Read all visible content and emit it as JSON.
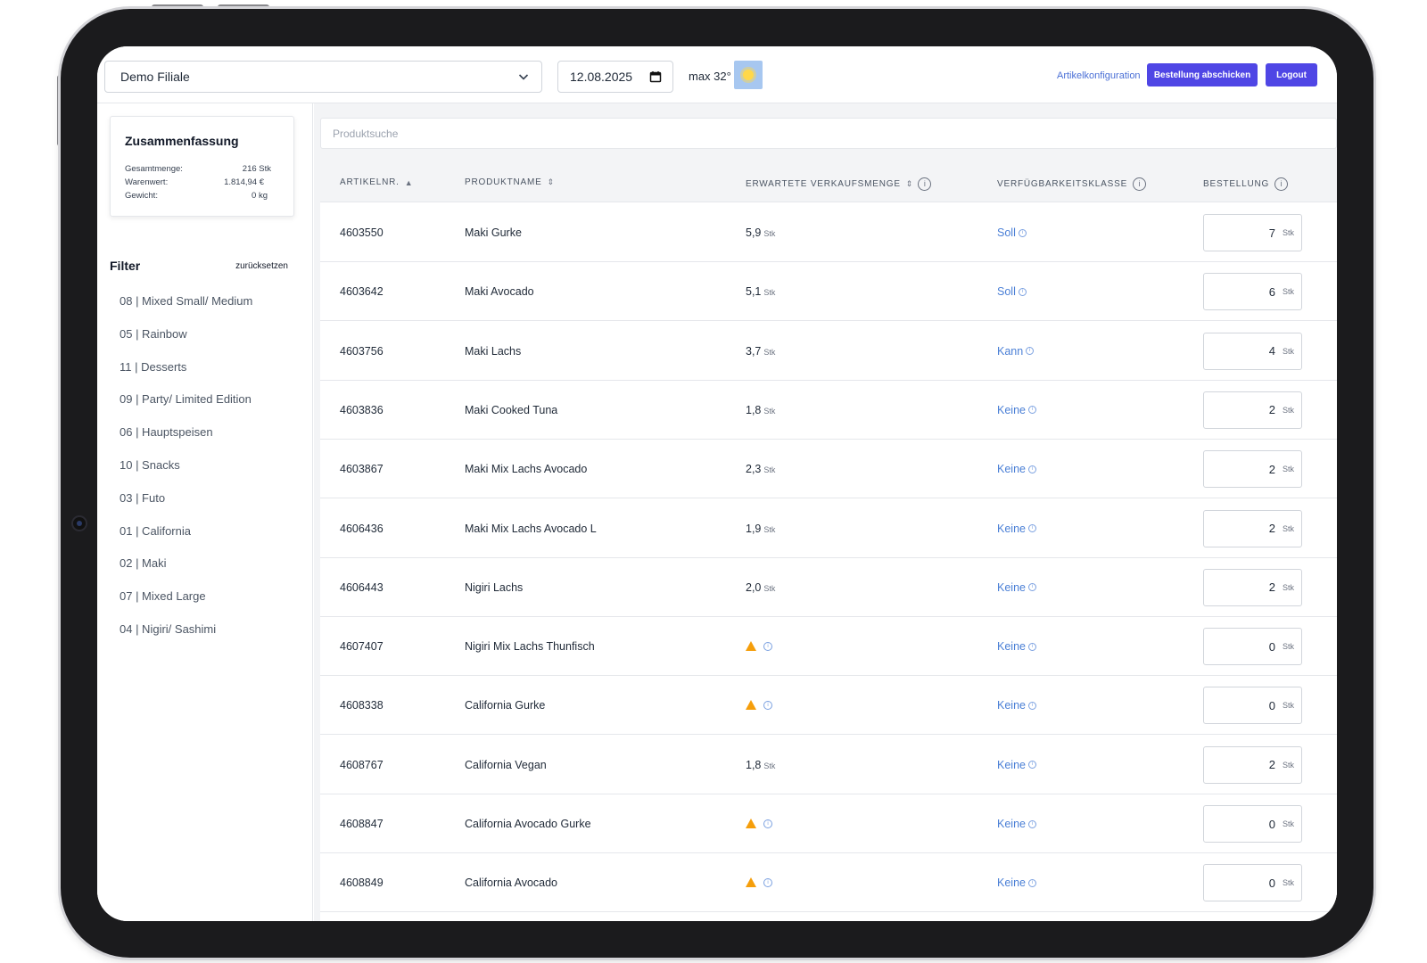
{
  "header": {
    "store": "Demo Filiale",
    "date": "12.08.2025",
    "weather": "max 32°",
    "config_link": "Artikelkonfiguration",
    "order_button": "Bestellung abschicken",
    "logout_button": "Logout"
  },
  "summary": {
    "title": "Zusammenfassung",
    "rows": [
      {
        "label": "Gesamtmenge:",
        "value": "216 Stk"
      },
      {
        "label": "Warenwert:",
        "value": "1.814,94 €"
      },
      {
        "label": "Gewicht:",
        "value": "0 kg"
      }
    ]
  },
  "filter": {
    "title": "Filter",
    "reset": "zurücksetzen",
    "items": [
      "08 | Mixed Small/ Medium",
      "05 | Rainbow",
      "11 | Desserts",
      "09 | Party/ Limited Edition",
      "06 | Hauptspeisen",
      "10 | Snacks",
      "03 | Futo",
      "01 | California",
      "02 | Maki",
      "07 | Mixed Large",
      "04 | Nigiri/ Sashimi"
    ]
  },
  "search": {
    "placeholder": "Produktsuche"
  },
  "table": {
    "headers": {
      "art": "ARTIKELNR.",
      "name": "PRODUKTNAME",
      "qty": "ERWARTETE VERKAUFSMENGE",
      "cls": "VERFÜGBARKEITSKLASSE",
      "order": "BESTELLUNG"
    },
    "unit": "Stk",
    "rows": [
      {
        "art": "4603550",
        "name": "Maki Gurke",
        "qty": "5,9",
        "cls": "Soll",
        "order": "7"
      },
      {
        "art": "4603642",
        "name": "Maki Avocado",
        "qty": "5,1",
        "cls": "Soll",
        "order": "6"
      },
      {
        "art": "4603756",
        "name": "Maki Lachs",
        "qty": "3,7",
        "cls": "Kann",
        "order": "4"
      },
      {
        "art": "4603836",
        "name": "Maki Cooked Tuna",
        "qty": "1,8",
        "cls": "Keine",
        "order": "2"
      },
      {
        "art": "4603867",
        "name": "Maki Mix Lachs Avocado",
        "qty": "2,3",
        "cls": "Keine",
        "order": "2"
      },
      {
        "art": "4606436",
        "name": "Maki Mix Lachs Avocado L",
        "qty": "1,9",
        "cls": "Keine",
        "order": "2"
      },
      {
        "art": "4606443",
        "name": "Nigiri Lachs",
        "qty": "2,0",
        "cls": "Keine",
        "order": "2"
      },
      {
        "art": "4607407",
        "name": "Nigiri Mix Lachs Thunfisch",
        "qty": null,
        "cls": "Keine",
        "order": "0"
      },
      {
        "art": "4608338",
        "name": "California Gurke",
        "qty": null,
        "cls": "Keine",
        "order": "0"
      },
      {
        "art": "4608767",
        "name": "California Vegan",
        "qty": "1,8",
        "cls": "Keine",
        "order": "2"
      },
      {
        "art": "4608847",
        "name": "California Avocado Gurke",
        "qty": null,
        "cls": "Keine",
        "order": "0"
      },
      {
        "art": "4608849",
        "name": "California Avocado",
        "qty": null,
        "cls": "Keine",
        "order": "0"
      }
    ]
  },
  "colors": {
    "accent": "#4f46e5",
    "link": "#4a7fd6",
    "warning": "#f59e0b"
  },
  "icons": {
    "dropdown": "chevron-down-icon",
    "calendar": "calendar-icon",
    "weather": "sun-icon",
    "warning": "warning-icon",
    "info": "info-icon"
  }
}
